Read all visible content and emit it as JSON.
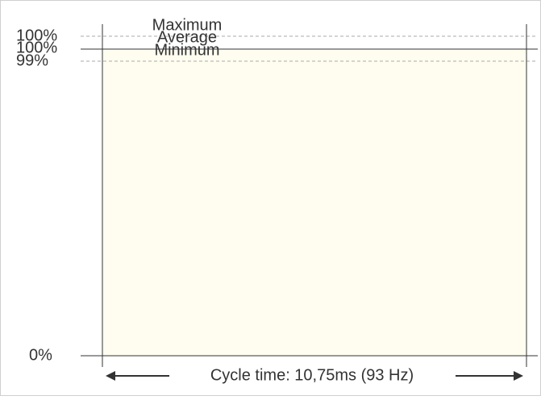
{
  "levels": [
    {
      "name": "Maximum",
      "label": "100%"
    },
    {
      "name": "Average",
      "label": "100%"
    },
    {
      "name": "Minimum",
      "label": "99%"
    }
  ],
  "axis_min_label": "0%",
  "footer": "Cycle time: 10,75ms (93 Hz)"
}
